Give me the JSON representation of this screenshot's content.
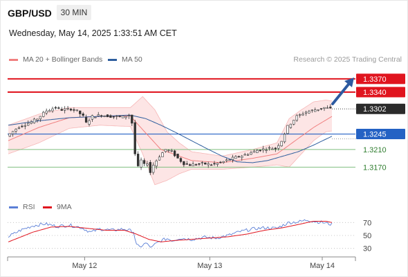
{
  "header": {
    "symbol": "GBP/USD",
    "timeframe": "30 MIN",
    "datetime": "Wednesday, May 14, 2025 1:33:51 AM CET",
    "credit": "Research © 2025 Trading Central"
  },
  "legend": {
    "ma20_label": "MA 20 + Bollinger Bands",
    "ma20_color": "#f08080",
    "ma50_label": "MA 50",
    "ma50_color": "#2e5e9e",
    "rsi_label": "RSI",
    "rsi_color": "#5b7fd6",
    "rsi_ma_label": "9MA",
    "rsi_ma_color": "#e0141e"
  },
  "chart_data": [
    {
      "type": "candlestick",
      "yrange": [
        1.3125,
        1.3395
      ],
      "x_ticks": [
        "May 12",
        "May 13",
        "May 14"
      ],
      "current_price": {
        "label": "1.3302",
        "value": 1.3302
      },
      "levels": [
        {
          "label": "1.3370",
          "value": 1.337,
          "color": "#e0141e",
          "style": "resistance",
          "boxed": true
        },
        {
          "label": "1.3340",
          "value": 1.334,
          "color": "#e0141e",
          "style": "resistance",
          "boxed": true
        },
        {
          "label": "1.3245",
          "value": 1.3245,
          "color": "#2462c4",
          "style": "pivot",
          "boxed": true
        },
        {
          "label": "1.3210",
          "value": 1.321,
          "color": "#7fbf7f",
          "style": "support",
          "boxed": false
        },
        {
          "label": "1.3170",
          "value": 1.317,
          "color": "#7fbf7f",
          "style": "support",
          "boxed": false
        }
      ],
      "arrow": {
        "direction": "up",
        "color": "#2d5aa0"
      },
      "price_path": [
        [
          0,
          1.324
        ],
        [
          4,
          1.3262
        ],
        [
          8,
          1.3272
        ],
        [
          10,
          1.328
        ],
        [
          13,
          1.3298
        ],
        [
          16,
          1.3305
        ],
        [
          18,
          1.33
        ],
        [
          21,
          1.3302
        ],
        [
          23,
          1.3297
        ],
        [
          25,
          1.3285
        ],
        [
          26,
          1.327
        ],
        [
          28,
          1.3285
        ],
        [
          31,
          1.3288
        ],
        [
          34,
          1.3285
        ],
        [
          38,
          1.3284
        ],
        [
          40,
          1.3288
        ],
        [
          41,
          1.327
        ],
        [
          42,
          1.32
        ],
        [
          43,
          1.317
        ],
        [
          44,
          1.3185
        ],
        [
          45,
          1.3175
        ],
        [
          46,
          1.318
        ],
        [
          47,
          1.3158
        ],
        [
          48,
          1.3175
        ],
        [
          50,
          1.3195
        ],
        [
          52,
          1.321
        ],
        [
          54,
          1.3205
        ],
        [
          56,
          1.319
        ],
        [
          58,
          1.3178
        ],
        [
          60,
          1.3175
        ],
        [
          64,
          1.3178
        ],
        [
          67,
          1.3176
        ],
        [
          70,
          1.318
        ],
        [
          74,
          1.319
        ],
        [
          78,
          1.3198
        ],
        [
          82,
          1.3208
        ],
        [
          86,
          1.3213
        ],
        [
          88,
          1.3212
        ],
        [
          90,
          1.323
        ],
        [
          92,
          1.3262
        ],
        [
          95,
          1.3285
        ],
        [
          98,
          1.3295
        ],
        [
          101,
          1.33
        ],
        [
          104,
          1.3305
        ],
        [
          106,
          1.3302
        ]
      ],
      "ma20_path": [
        [
          0,
          1.323
        ],
        [
          10,
          1.326
        ],
        [
          20,
          1.3282
        ],
        [
          30,
          1.3285
        ],
        [
          40,
          1.3286
        ],
        [
          44,
          1.3255
        ],
        [
          50,
          1.321
        ],
        [
          56,
          1.3195
        ],
        [
          60,
          1.3185
        ],
        [
          70,
          1.318
        ],
        [
          80,
          1.319
        ],
        [
          88,
          1.32
        ],
        [
          95,
          1.3235
        ],
        [
          100,
          1.326
        ],
        [
          106,
          1.3285
        ]
      ],
      "bb_upper_path": [
        [
          0,
          1.3265
        ],
        [
          10,
          1.329
        ],
        [
          20,
          1.3305
        ],
        [
          30,
          1.3305
        ],
        [
          40,
          1.3305
        ],
        [
          44,
          1.333
        ],
        [
          48,
          1.33
        ],
        [
          52,
          1.325
        ],
        [
          56,
          1.3225
        ],
        [
          60,
          1.3205
        ],
        [
          70,
          1.3195
        ],
        [
          80,
          1.321
        ],
        [
          88,
          1.3225
        ],
        [
          92,
          1.328
        ],
        [
          96,
          1.33
        ],
        [
          100,
          1.3318
        ],
        [
          104,
          1.3322
        ],
        [
          106,
          1.332
        ]
      ],
      "bb_lower_path": [
        [
          0,
          1.32
        ],
        [
          10,
          1.3225
        ],
        [
          20,
          1.3258
        ],
        [
          30,
          1.3265
        ],
        [
          40,
          1.3262
        ],
        [
          44,
          1.32
        ],
        [
          48,
          1.313
        ],
        [
          52,
          1.314
        ],
        [
          56,
          1.3155
        ],
        [
          60,
          1.3165
        ],
        [
          70,
          1.3165
        ],
        [
          80,
          1.317
        ],
        [
          88,
          1.3175
        ],
        [
          92,
          1.317
        ],
        [
          96,
          1.32
        ],
        [
          100,
          1.323
        ],
        [
          104,
          1.325
        ],
        [
          106,
          1.3252
        ]
      ],
      "ma50_path": [
        [
          0,
          1.3265
        ],
        [
          10,
          1.3275
        ],
        [
          20,
          1.3282
        ],
        [
          30,
          1.3285
        ],
        [
          40,
          1.3288
        ],
        [
          45,
          1.328
        ],
        [
          50,
          1.3265
        ],
        [
          55,
          1.3248
        ],
        [
          60,
          1.323
        ],
        [
          65,
          1.3212
        ],
        [
          70,
          1.3195
        ],
        [
          75,
          1.3182
        ],
        [
          80,
          1.318
        ],
        [
          85,
          1.3185
        ],
        [
          90,
          1.3195
        ],
        [
          95,
          1.3205
        ],
        [
          100,
          1.322
        ],
        [
          106,
          1.324
        ]
      ]
    },
    {
      "type": "line",
      "name": "RSI",
      "yrange": [
        20,
        80
      ],
      "y_ticks": [
        "70",
        "50",
        "30"
      ],
      "rsi_path": [
        [
          0,
          48
        ],
        [
          4,
          58
        ],
        [
          8,
          65
        ],
        [
          12,
          68
        ],
        [
          16,
          64
        ],
        [
          20,
          66
        ],
        [
          24,
          62
        ],
        [
          27,
          55
        ],
        [
          30,
          60
        ],
        [
          34,
          58
        ],
        [
          38,
          60
        ],
        [
          41,
          56
        ],
        [
          42,
          35
        ],
        [
          43,
          32
        ],
        [
          45,
          38
        ],
        [
          47,
          31
        ],
        [
          48,
          36
        ],
        [
          50,
          42
        ],
        [
          52,
          45
        ],
        [
          54,
          42
        ],
        [
          56,
          46
        ],
        [
          60,
          44
        ],
        [
          64,
          47
        ],
        [
          68,
          46
        ],
        [
          72,
          50
        ],
        [
          76,
          56
        ],
        [
          80,
          60
        ],
        [
          84,
          62
        ],
        [
          88,
          61
        ],
        [
          90,
          66
        ],
        [
          92,
          70
        ],
        [
          95,
          71
        ],
        [
          98,
          74
        ],
        [
          100,
          72
        ],
        [
          103,
          70
        ],
        [
          106,
          67
        ]
      ],
      "ma_path": [
        [
          0,
          40
        ],
        [
          8,
          55
        ],
        [
          14,
          63
        ],
        [
          20,
          64
        ],
        [
          26,
          61
        ],
        [
          32,
          58
        ],
        [
          38,
          58
        ],
        [
          42,
          52
        ],
        [
          46,
          44
        ],
        [
          50,
          40
        ],
        [
          54,
          42
        ],
        [
          60,
          44
        ],
        [
          66,
          46
        ],
        [
          72,
          48
        ],
        [
          78,
          52
        ],
        [
          84,
          58
        ],
        [
          90,
          62
        ],
        [
          95,
          67
        ],
        [
          100,
          72
        ],
        [
          104,
          72
        ],
        [
          106,
          70
        ]
      ]
    }
  ]
}
